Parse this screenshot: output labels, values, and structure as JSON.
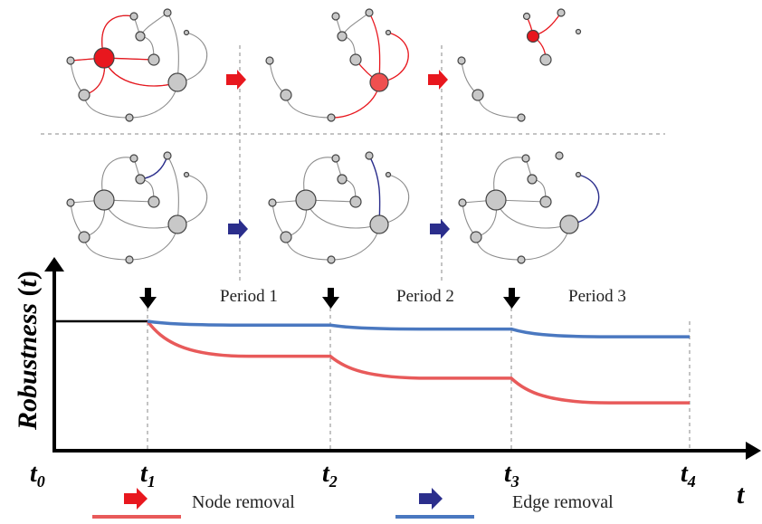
{
  "axis": {
    "ylabel": "Robustness",
    "ylabel_arg": "t",
    "xlabel": "t"
  },
  "ticks": [
    {
      "base": "t",
      "sub": "0"
    },
    {
      "base": "t",
      "sub": "1"
    },
    {
      "base": "t",
      "sub": "2"
    },
    {
      "base": "t",
      "sub": "3"
    },
    {
      "base": "t",
      "sub": "4"
    }
  ],
  "periods": [
    "Period 1",
    "Period 2",
    "Period 3"
  ],
  "legend": {
    "node_label": "Node removal",
    "edge_label": "Edge removal",
    "node_color": "#e8171e",
    "edge_color": "#2b2e8c",
    "node_line_color": "#e85a5a",
    "edge_line_color": "#4a78c0"
  },
  "chart_data": {
    "type": "line",
    "title": "",
    "xlabel": "t",
    "ylabel": "Robustness (t)",
    "x": [
      "t0",
      "t1",
      "t2",
      "t3",
      "t4"
    ],
    "series": [
      {
        "name": "Edge removal",
        "values": [
          1.0,
          1.0,
          0.97,
          0.94,
          0.88
        ]
      },
      {
        "name": "Node removal",
        "values": [
          1.0,
          1.0,
          0.73,
          0.56,
          0.37
        ]
      }
    ]
  }
}
